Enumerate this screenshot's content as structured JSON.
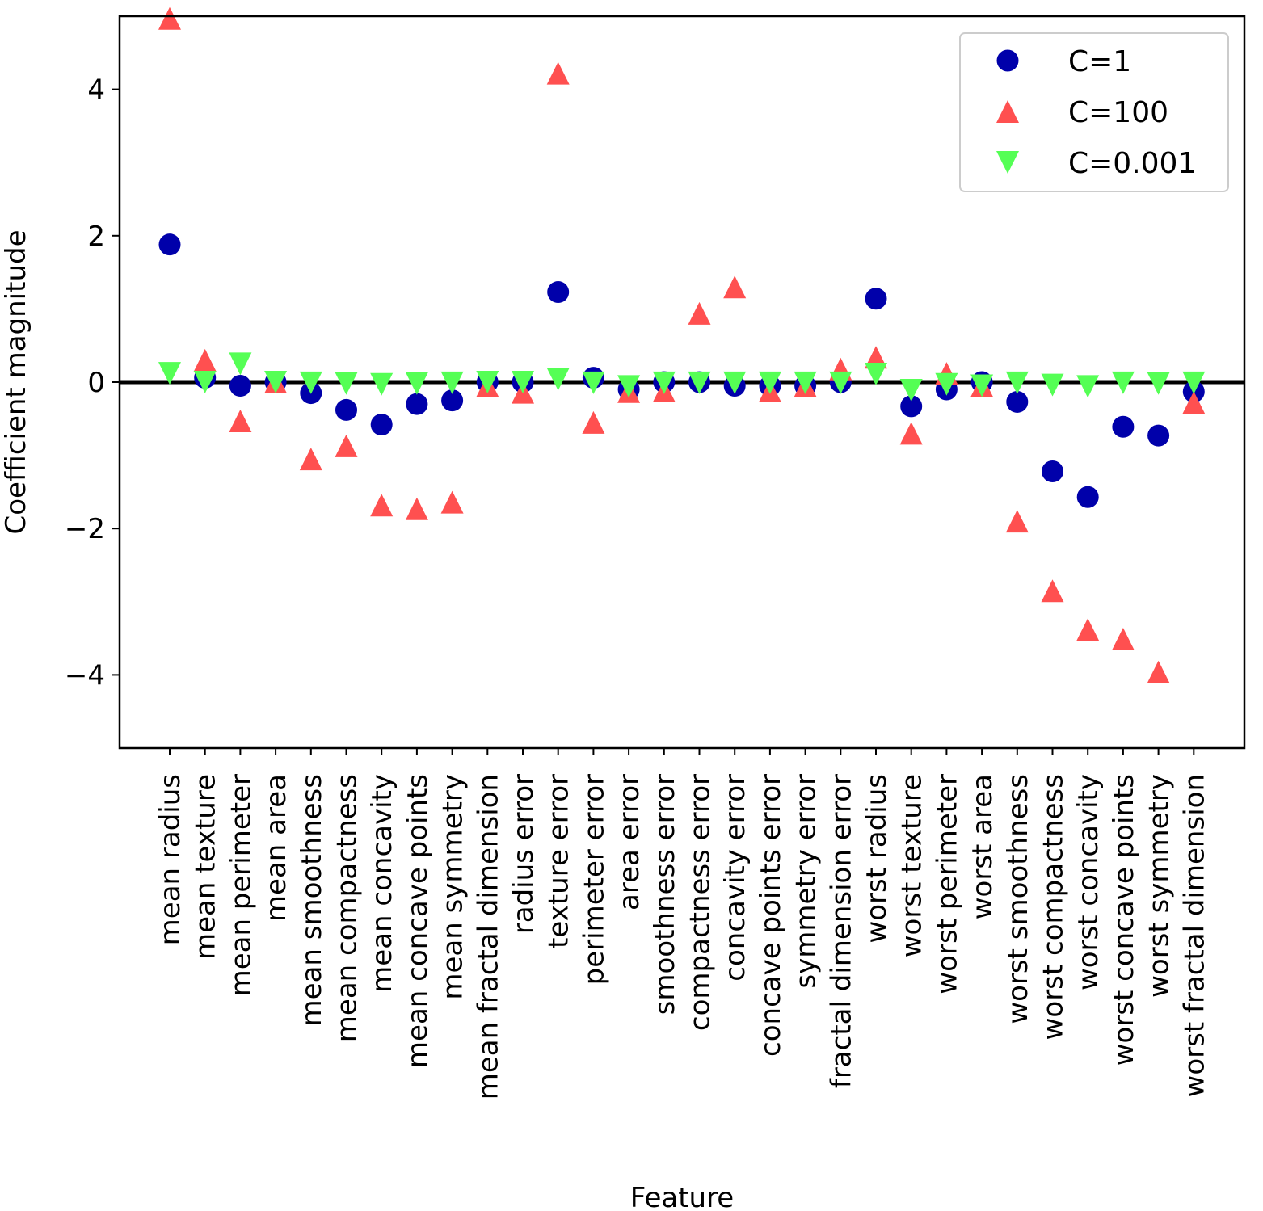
{
  "chart_data": {
    "type": "scatter",
    "title": "",
    "xlabel": "Feature",
    "ylabel": "Coefficient magnitude",
    "ylim": [
      -5,
      5
    ],
    "yticks": [
      {
        "value": 4,
        "label": "4"
      },
      {
        "value": 2,
        "label": "2"
      },
      {
        "value": 0,
        "label": "0"
      },
      {
        "value": -2,
        "label": "−2"
      },
      {
        "value": -4,
        "label": "−4"
      }
    ],
    "hline": 0,
    "legend_position": "top-right",
    "categories": [
      "mean radius",
      "mean texture",
      "mean perimeter",
      "mean area",
      "mean smoothness",
      "mean compactness",
      "mean concavity",
      "mean concave points",
      "mean symmetry",
      "mean fractal dimension",
      "radius error",
      "texture error",
      "perimeter error",
      "area error",
      "smoothness error",
      "compactness error",
      "concavity error",
      "concave points error",
      "symmetry error",
      "fractal dimension error",
      "worst radius",
      "worst texture",
      "worst perimeter",
      "worst area",
      "worst smoothness",
      "worst compactness",
      "worst concavity",
      "worst concave points",
      "worst symmetry",
      "worst fractal dimension"
    ],
    "series": [
      {
        "name": "C=1",
        "marker": "circle",
        "color": "#0000aa",
        "values": [
          1.88,
          0.06,
          -0.05,
          0.0,
          -0.15,
          -0.38,
          -0.58,
          -0.3,
          -0.25,
          0.0,
          0.0,
          1.23,
          0.06,
          -0.1,
          0.0,
          0.0,
          -0.05,
          -0.05,
          -0.05,
          0.0,
          1.14,
          -0.33,
          -0.1,
          0.0,
          -0.27,
          -1.22,
          -1.57,
          -0.61,
          -0.73,
          -0.13
        ]
      },
      {
        "name": "C=100",
        "marker": "triangle-up",
        "color": "#ff5050",
        "values": [
          4.97,
          0.3,
          -0.53,
          0.0,
          -1.05,
          -0.87,
          -1.68,
          -1.73,
          -1.64,
          -0.05,
          -0.14,
          4.22,
          -0.55,
          -0.13,
          -0.12,
          0.94,
          1.3,
          -0.12,
          -0.05,
          0.18,
          0.34,
          -0.7,
          0.12,
          -0.05,
          -1.9,
          -2.85,
          -3.38,
          -3.51,
          -3.96,
          -0.28
        ]
      },
      {
        "name": "C=0.001",
        "marker": "triangle-down",
        "color": "#55ff55",
        "values": [
          0.12,
          0.0,
          0.25,
          0.0,
          -0.01,
          -0.02,
          -0.03,
          -0.02,
          -0.01,
          0.0,
          0.0,
          0.04,
          -0.01,
          -0.06,
          -0.01,
          -0.01,
          -0.01,
          -0.01,
          -0.01,
          -0.01,
          0.11,
          -0.11,
          -0.03,
          -0.05,
          -0.01,
          -0.04,
          -0.06,
          -0.01,
          -0.02,
          -0.01
        ]
      }
    ]
  }
}
